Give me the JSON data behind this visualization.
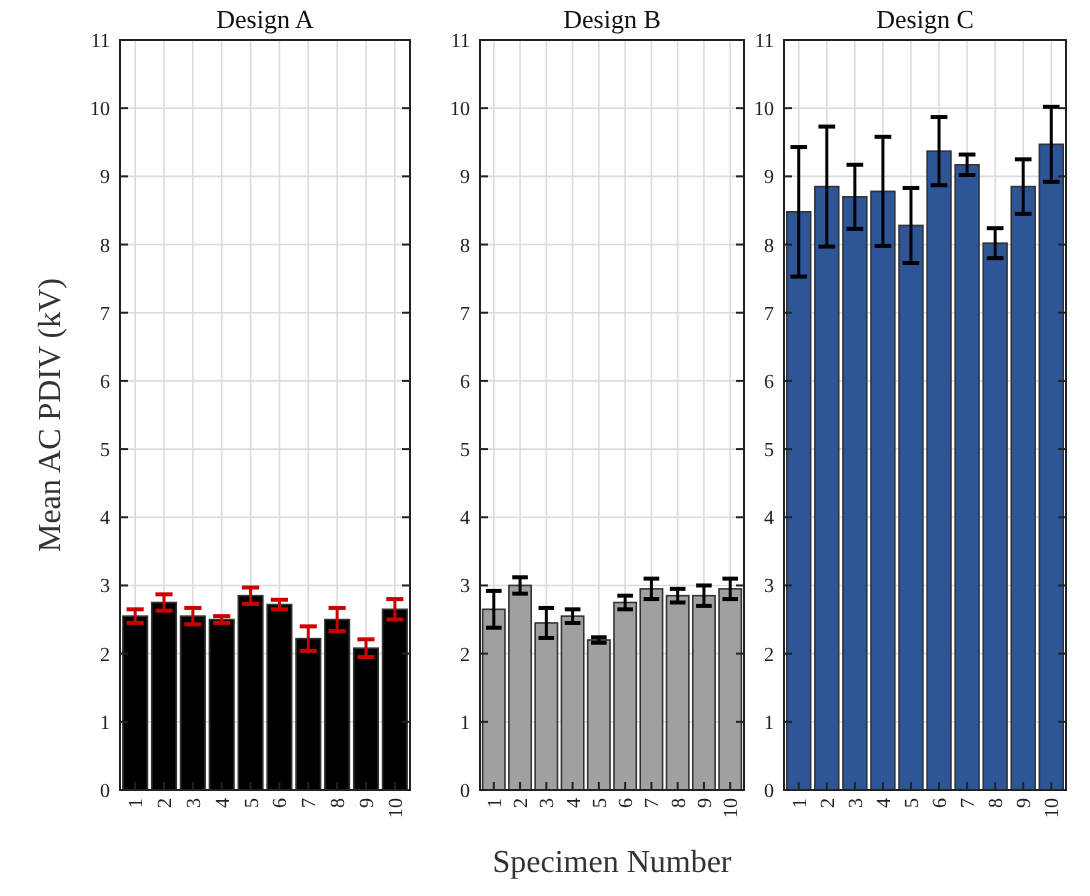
{
  "chart_data": [
    {
      "type": "bar",
      "title": "Design A",
      "ylabel": "Mean AC PDIV (kV)",
      "categories": [
        "1",
        "2",
        "3",
        "4",
        "5",
        "6",
        "7",
        "8",
        "9",
        "10"
      ],
      "series": [
        {
          "color": "#000000",
          "values": [
            2.55,
            2.75,
            2.55,
            2.5,
            2.85,
            2.72,
            2.22,
            2.5,
            2.08,
            2.65
          ],
          "errors": [
            0.1,
            0.12,
            0.12,
            0.05,
            0.12,
            0.07,
            0.18,
            0.17,
            0.13,
            0.15
          ]
        }
      ],
      "ylim": [
        0,
        11
      ],
      "yticks": [
        0,
        1,
        2,
        3,
        4,
        5,
        6,
        7,
        8,
        9,
        10,
        11
      ],
      "grid": true
    },
    {
      "type": "bar",
      "title": "Design B",
      "xlabel": "Specimen Number",
      "categories": [
        "1",
        "2",
        "3",
        "4",
        "5",
        "6",
        "7",
        "8",
        "9",
        "10"
      ],
      "series": [
        {
          "color": "#a0a0a0",
          "values": [
            2.65,
            3.0,
            2.45,
            2.55,
            2.2,
            2.75,
            2.95,
            2.85,
            2.85,
            2.95
          ],
          "errors": [
            0.27,
            0.12,
            0.22,
            0.1,
            0.04,
            0.1,
            0.15,
            0.1,
            0.15,
            0.15
          ]
        }
      ],
      "ylim": [
        0,
        11
      ],
      "yticks": [
        0,
        1,
        2,
        3,
        4,
        5,
        6,
        7,
        8,
        9,
        10,
        11
      ],
      "grid": true
    },
    {
      "type": "bar",
      "title": "Design C",
      "categories": [
        "1",
        "2",
        "3",
        "4",
        "5",
        "6",
        "7",
        "8",
        "9",
        "10"
      ],
      "series": [
        {
          "color": "#2e5596",
          "values": [
            8.48,
            8.85,
            8.7,
            8.78,
            8.28,
            9.37,
            9.17,
            8.02,
            8.85,
            9.47
          ],
          "errors": [
            0.95,
            0.88,
            0.47,
            0.8,
            0.55,
            0.5,
            0.15,
            0.22,
            0.4,
            0.55
          ]
        }
      ],
      "ylim": [
        0,
        11
      ],
      "yticks": [
        0,
        1,
        2,
        3,
        4,
        5,
        6,
        7,
        8,
        9,
        10,
        11
      ],
      "grid": true
    }
  ]
}
